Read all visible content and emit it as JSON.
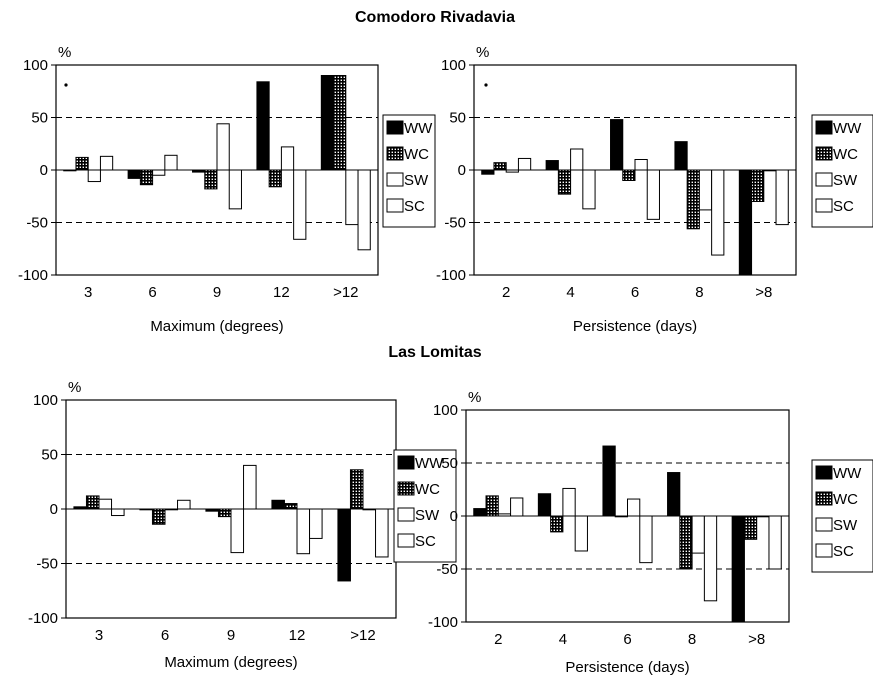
{
  "titles": [
    "Comodoro Rivadavia",
    "Las Lomitas"
  ],
  "chart_data": [
    {
      "type": "bar",
      "station": "Comodoro Rivadavia",
      "xlabel": "Maximum (degrees)",
      "ylabel": "%",
      "ylim": [
        -100,
        100
      ],
      "yticks": [
        "100",
        "50",
        "0",
        "-50",
        "-100"
      ],
      "categories": [
        "3",
        "6",
        "9",
        "12",
        ">12"
      ],
      "series": [
        {
          "name": "WW",
          "values": [
            0,
            -8,
            -2,
            84,
            90
          ]
        },
        {
          "name": "WC",
          "values": [
            12,
            -14,
            -18,
            -16,
            90
          ]
        },
        {
          "name": "SW",
          "values": [
            -11,
            -5,
            44,
            22,
            -52
          ]
        },
        {
          "name": "SC",
          "values": [
            13,
            14,
            -37,
            -66,
            -76
          ]
        }
      ],
      "legend": [
        "WW",
        "WC",
        "SW",
        "SC"
      ]
    },
    {
      "type": "bar",
      "station": "Comodoro Rivadavia",
      "xlabel": "Persistence (days)",
      "ylabel": "%",
      "ylim": [
        -100,
        100
      ],
      "yticks": [
        "100",
        "50",
        "0",
        "-50",
        "-100"
      ],
      "categories": [
        "2",
        "4",
        "6",
        "8",
        ">8"
      ],
      "series": [
        {
          "name": "WW",
          "values": [
            -4,
            9,
            48,
            27,
            -100
          ]
        },
        {
          "name": "WC",
          "values": [
            7,
            -23,
            -10,
            -56,
            -30
          ]
        },
        {
          "name": "SW",
          "values": [
            -2,
            20,
            10,
            -38,
            0
          ]
        },
        {
          "name": "SC",
          "values": [
            11,
            -37,
            -47,
            -81,
            -52
          ]
        }
      ],
      "legend": [
        "WW",
        "WC",
        "SW",
        "SC"
      ]
    },
    {
      "type": "bar",
      "station": "Las Lomitas",
      "xlabel": "Maximum (degrees)",
      "ylabel": "%",
      "ylim": [
        -100,
        100
      ],
      "yticks": [
        "100",
        "50",
        "0",
        "-50",
        "-100"
      ],
      "categories": [
        "3",
        "6",
        "9",
        "12",
        ">12"
      ],
      "series": [
        {
          "name": "WW",
          "values": [
            2,
            0,
            -2,
            8,
            -66
          ]
        },
        {
          "name": "WC",
          "values": [
            12,
            -14,
            -7,
            5,
            36
          ]
        },
        {
          "name": "SW",
          "values": [
            9,
            0,
            -40,
            -41,
            0
          ]
        },
        {
          "name": "SC",
          "values": [
            -6,
            8,
            40,
            -27,
            -44
          ]
        }
      ],
      "legend": [
        "WW",
        "WC",
        "SW",
        "SC"
      ]
    },
    {
      "type": "bar",
      "station": "Las Lomitas",
      "xlabel": "Persistence (days)",
      "ylabel": "%",
      "ylim": [
        -100,
        100
      ],
      "yticks": [
        "100",
        "50",
        "0",
        "-50",
        "-100"
      ],
      "categories": [
        "2",
        "4",
        "6",
        "8",
        ">8"
      ],
      "series": [
        {
          "name": "WW",
          "values": [
            7,
            21,
            66,
            41,
            -100
          ]
        },
        {
          "name": "WC",
          "values": [
            19,
            -15,
            0,
            -50,
            -22
          ]
        },
        {
          "name": "SW",
          "values": [
            2,
            26,
            16,
            -35,
            0
          ]
        },
        {
          "name": "SC",
          "values": [
            17,
            -33,
            -44,
            -80,
            -50
          ]
        }
      ],
      "legend": [
        "WW",
        "WC",
        "SW",
        "SC"
      ]
    }
  ]
}
